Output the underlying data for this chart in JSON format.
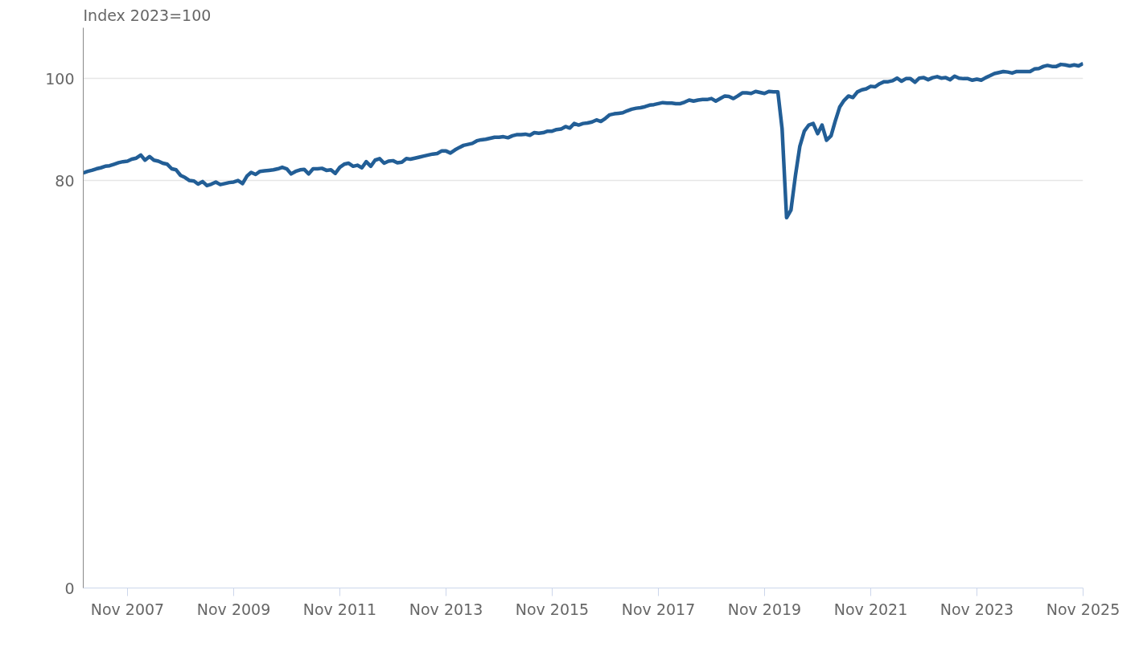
{
  "chart_data": {
    "type": "line",
    "ylabel": "Index 2023=100",
    "x": [
      "2007-01",
      "2007-02",
      "2007-03",
      "2007-04",
      "2007-05",
      "2007-06",
      "2007-07",
      "2007-08",
      "2007-09",
      "2007-10",
      "2007-11",
      "2007-12",
      "2008-01",
      "2008-02",
      "2008-03",
      "2008-04",
      "2008-05",
      "2008-06",
      "2008-07",
      "2008-08",
      "2008-09",
      "2008-10",
      "2008-11",
      "2008-12",
      "2009-01",
      "2009-02",
      "2009-03",
      "2009-04",
      "2009-05",
      "2009-06",
      "2009-07",
      "2009-08",
      "2009-09",
      "2009-10",
      "2009-11",
      "2009-12",
      "2010-01",
      "2010-02",
      "2010-03",
      "2010-04",
      "2010-05",
      "2010-06",
      "2010-07",
      "2010-08",
      "2010-09",
      "2010-10",
      "2010-11",
      "2010-12",
      "2011-01",
      "2011-02",
      "2011-03",
      "2011-04",
      "2011-05",
      "2011-06",
      "2011-07",
      "2011-08",
      "2011-09",
      "2011-10",
      "2011-11",
      "2011-12",
      "2012-01",
      "2012-02",
      "2012-03",
      "2012-04",
      "2012-05",
      "2012-06",
      "2012-07",
      "2012-08",
      "2012-09",
      "2012-10",
      "2012-11",
      "2012-12",
      "2013-01",
      "2013-02",
      "2013-03",
      "2013-04",
      "2013-05",
      "2013-06",
      "2013-07",
      "2013-08",
      "2013-09",
      "2013-10",
      "2013-11",
      "2013-12",
      "2014-01",
      "2014-02",
      "2014-03",
      "2014-04",
      "2014-05",
      "2014-06",
      "2014-07",
      "2014-08",
      "2014-09",
      "2014-10",
      "2014-11",
      "2014-12",
      "2015-01",
      "2015-02",
      "2015-03",
      "2015-04",
      "2015-05",
      "2015-06",
      "2015-07",
      "2015-08",
      "2015-09",
      "2015-10",
      "2015-11",
      "2015-12",
      "2016-01",
      "2016-02",
      "2016-03",
      "2016-04",
      "2016-05",
      "2016-06",
      "2016-07",
      "2016-08",
      "2016-09",
      "2016-10",
      "2016-11",
      "2016-12",
      "2017-01",
      "2017-02",
      "2017-03",
      "2017-04",
      "2017-05",
      "2017-06",
      "2017-07",
      "2017-08",
      "2017-09",
      "2017-10",
      "2017-11",
      "2017-12",
      "2018-01",
      "2018-02",
      "2018-03",
      "2018-04",
      "2018-05",
      "2018-06",
      "2018-07",
      "2018-08",
      "2018-09",
      "2018-10",
      "2018-11",
      "2018-12",
      "2019-01",
      "2019-02",
      "2019-03",
      "2019-04",
      "2019-05",
      "2019-06",
      "2019-07",
      "2019-08",
      "2019-09",
      "2019-10",
      "2019-11",
      "2019-12",
      "2020-01",
      "2020-02",
      "2020-03",
      "2020-04",
      "2020-05",
      "2020-06",
      "2020-07",
      "2020-08",
      "2020-09",
      "2020-10",
      "2020-11",
      "2020-12",
      "2021-01",
      "2021-02",
      "2021-03",
      "2021-04",
      "2021-05",
      "2021-06",
      "2021-07",
      "2021-08",
      "2021-09",
      "2021-10",
      "2021-11",
      "2021-12",
      "2022-01",
      "2022-02",
      "2022-03",
      "2022-04",
      "2022-05",
      "2022-06",
      "2022-07",
      "2022-08",
      "2022-09",
      "2022-10",
      "2022-11",
      "2022-12",
      "2023-01",
      "2023-02",
      "2023-03",
      "2023-04",
      "2023-05",
      "2023-06",
      "2023-07",
      "2023-08",
      "2023-09",
      "2023-10",
      "2023-11",
      "2023-12",
      "2024-01",
      "2024-02",
      "2024-03",
      "2024-04",
      "2024-05",
      "2024-06",
      "2024-07",
      "2024-08",
      "2024-09",
      "2024-10",
      "2024-11",
      "2024-12",
      "2025-01",
      "2025-02",
      "2025-03",
      "2025-04",
      "2025-05",
      "2025-06",
      "2025-07",
      "2025-08",
      "2025-09",
      "2025-10",
      "2025-11"
    ],
    "series": [
      {
        "color": "#225e96",
        "values": [
          81.5,
          81.8,
          82.0,
          82.3,
          82.5,
          82.8,
          82.9,
          83.2,
          83.5,
          83.7,
          83.8,
          84.2,
          84.4,
          85.0,
          84.0,
          84.7,
          84.0,
          83.8,
          83.4,
          83.2,
          82.3,
          82.1,
          81.0,
          80.6,
          80.0,
          79.9,
          79.3,
          79.8,
          79.0,
          79.3,
          79.7,
          79.2,
          79.4,
          79.6,
          79.7,
          80.0,
          79.4,
          80.9,
          81.6,
          81.2,
          81.8,
          81.9,
          82.0,
          82.1,
          82.3,
          82.6,
          82.3,
          81.3,
          81.8,
          82.1,
          82.2,
          81.3,
          82.3,
          82.3,
          82.4,
          82.0,
          82.1,
          81.4,
          82.6,
          83.2,
          83.4,
          82.8,
          83.0,
          82.5,
          83.7,
          82.8,
          84.0,
          84.3,
          83.4,
          83.8,
          83.9,
          83.5,
          83.6,
          84.3,
          84.2,
          84.4,
          84.6,
          84.8,
          85.0,
          85.2,
          85.3,
          85.8,
          85.8,
          85.4,
          86.0,
          86.5,
          86.9,
          87.1,
          87.3,
          87.8,
          88.0,
          88.1,
          88.3,
          88.5,
          88.5,
          88.6,
          88.4,
          88.8,
          89.0,
          89.0,
          89.1,
          88.9,
          89.4,
          89.3,
          89.4,
          89.7,
          89.7,
          90.0,
          90.1,
          90.6,
          90.3,
          91.2,
          90.9,
          91.2,
          91.3,
          91.5,
          91.9,
          91.6,
          92.2,
          92.9,
          93.1,
          93.2,
          93.3,
          93.7,
          94.0,
          94.2,
          94.3,
          94.5,
          94.8,
          94.9,
          95.1,
          95.3,
          95.2,
          95.2,
          95.1,
          95.1,
          95.4,
          95.8,
          95.6,
          95.8,
          95.9,
          95.9,
          96.1,
          95.6,
          96.1,
          96.6,
          96.5,
          96.1,
          96.6,
          97.2,
          97.2,
          97.1,
          97.5,
          97.3,
          97.1,
          97.5,
          97.4,
          97.4,
          90.2,
          72.7,
          74.2,
          81.0,
          86.7,
          89.7,
          90.9,
          91.2,
          89.2,
          90.9,
          87.9,
          88.8,
          91.6,
          94.4,
          95.7,
          96.6,
          96.3,
          97.4,
          97.8,
          98.0,
          98.5,
          98.4,
          99.0,
          99.4,
          99.4,
          99.6,
          100.1,
          99.5,
          100.0,
          100.0,
          99.3,
          100.1,
          100.2,
          99.8,
          100.2,
          100.4,
          100.1,
          100.2,
          99.8,
          100.5,
          100.1,
          100.0,
          100.0,
          99.7,
          99.9,
          99.7,
          100.2,
          100.6,
          101.0,
          101.2,
          101.4,
          101.3,
          101.1,
          101.4,
          101.4,
          101.4,
          101.4,
          101.9,
          102.0,
          102.4,
          102.6,
          102.4,
          102.4,
          102.8,
          102.7,
          102.5,
          102.7,
          102.5,
          103.0
        ]
      }
    ],
    "xlim": [
      "2007-01",
      "2025-11"
    ],
    "xticks": [
      {
        "value": "2007-11",
        "label": "Nov 2007"
      },
      {
        "value": "2009-11",
        "label": "Nov 2009"
      },
      {
        "value": "2011-11",
        "label": "Nov 2011"
      },
      {
        "value": "2013-11",
        "label": "Nov 2013"
      },
      {
        "value": "2015-11",
        "label": "Nov 2015"
      },
      {
        "value": "2017-11",
        "label": "Nov 2017"
      },
      {
        "value": "2019-11",
        "label": "Nov 2019"
      },
      {
        "value": "2021-11",
        "label": "Nov 2021"
      },
      {
        "value": "2023-11",
        "label": "Nov 2023"
      },
      {
        "value": "2025-11",
        "label": "Nov 2025"
      }
    ],
    "ylim": [
      0,
      110
    ],
    "yticks": [
      0,
      80,
      100
    ],
    "grid": "y",
    "marker": "none",
    "line_style": "solid"
  }
}
